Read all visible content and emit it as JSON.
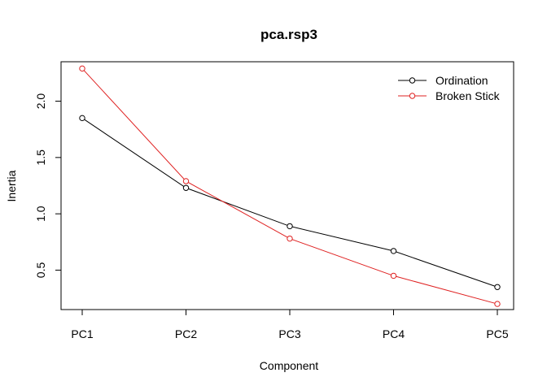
{
  "chart_data": {
    "type": "line",
    "title": "pca.rsp3",
    "xlabel": "Component",
    "ylabel": "Inertia",
    "categories": [
      "PC1",
      "PC2",
      "PC3",
      "PC4",
      "PC5"
    ],
    "ylim": [
      0.15,
      2.35
    ],
    "yticks": [
      0.5,
      1.0,
      1.5,
      2.0
    ],
    "ytick_labels": [
      "0.5",
      "1.0",
      "1.5",
      "2.0"
    ],
    "grid": false,
    "legend_position": "top-right",
    "series": [
      {
        "name": "Ordination",
        "color": "#000000",
        "values": [
          1.85,
          1.23,
          0.89,
          0.67,
          0.35
        ]
      },
      {
        "name": "Broken Stick",
        "color": "#df2020",
        "values": [
          2.29,
          1.29,
          0.78,
          0.45,
          0.2
        ]
      }
    ]
  }
}
